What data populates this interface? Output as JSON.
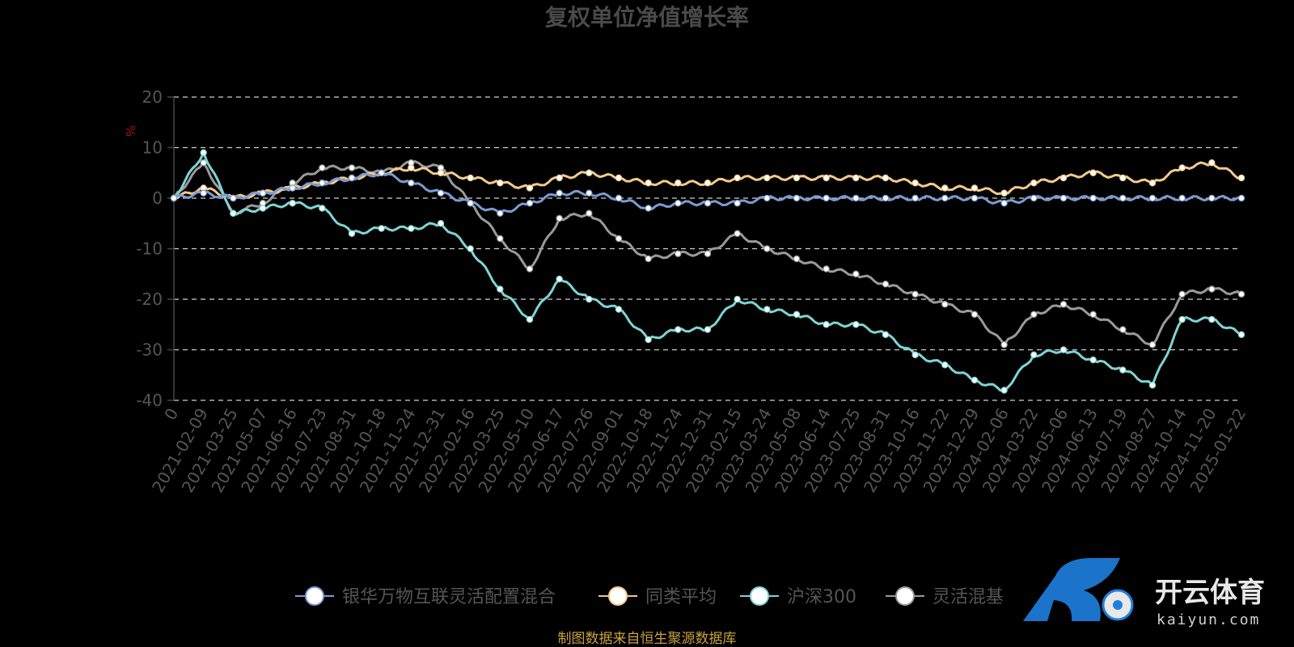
{
  "chart_data": {
    "type": "line",
    "title": "复权单位净值增长率",
    "ylabel": "%",
    "ylim": [
      -40,
      20
    ],
    "yticks": [
      20,
      10,
      0,
      -10,
      -20,
      -30,
      -40
    ],
    "grid": true,
    "legend_position": "bottom",
    "source_note": "制图数据来自恒生聚源数据库",
    "x_ticks": [
      "0",
      "2021-02-09",
      "2021-03-25",
      "2021-05-07",
      "2021-06-16",
      "2021-07-23",
      "2021-08-31",
      "2021-10-18",
      "2021-11-24",
      "2021-12-31",
      "2022-02-16",
      "2022-03-25",
      "2022-05-10",
      "2022-06-17",
      "2022-07-26",
      "2022-09-01",
      "2022-10-18",
      "2022-11-24",
      "2022-12-31",
      "2023-02-15",
      "2023-03-24",
      "2023-05-08",
      "2023-06-14",
      "2023-07-25",
      "2023-08-31",
      "2023-10-16",
      "2023-11-22",
      "2023-12-29",
      "2024-02-06",
      "2024-03-22",
      "2024-05-06",
      "2024-06-13",
      "2024-07-19",
      "2024-08-27",
      "2024-10-14",
      "2024-11-20",
      "2025-01-22"
    ],
    "series": [
      {
        "name": "银华万物互联灵活配置混合",
        "color": "#7b9bd1",
        "values": [
          0,
          1,
          0,
          1,
          2,
          3,
          4,
          5,
          3,
          1,
          -1,
          -3,
          -1,
          1,
          1,
          0,
          -2,
          -1,
          -1,
          -1,
          0,
          0,
          0,
          0,
          0,
          0,
          0,
          0,
          -1,
          0,
          0,
          0,
          0,
          0,
          0,
          0,
          0
        ]
      },
      {
        "name": "同类平均",
        "color": "#f3c98a",
        "values": [
          0,
          2,
          0,
          1,
          2,
          3,
          4,
          5,
          6,
          5,
          4,
          3,
          2,
          4,
          5,
          4,
          3,
          3,
          3,
          4,
          4,
          4,
          4,
          4,
          4,
          3,
          2,
          2,
          1,
          3,
          4,
          5,
          4,
          3,
          6,
          7,
          4
        ]
      },
      {
        "name": "沪深300",
        "color": "#7fd4d4",
        "values": [
          0,
          9,
          -3,
          -2,
          -1,
          -2,
          -7,
          -6,
          -6,
          -5,
          -10,
          -18,
          -24,
          -16,
          -20,
          -22,
          -28,
          -26,
          -26,
          -20,
          -22,
          -23,
          -25,
          -25,
          -27,
          -31,
          -33,
          -36,
          -38,
          -31,
          -30,
          -32,
          -34,
          -37,
          -24,
          -24,
          -27
        ]
      },
      {
        "name": "灵活混基",
        "color": "#9a9a9a",
        "values": [
          0,
          7,
          -3,
          -1,
          3,
          6,
          6,
          5,
          7,
          6,
          -1,
          -8,
          -14,
          -4,
          -3,
          -8,
          -12,
          -11,
          -11,
          -7,
          -10,
          -12,
          -14,
          -15,
          -17,
          -19,
          -21,
          -23,
          -29,
          -23,
          -21,
          -23,
          -26,
          -29,
          -19,
          -18,
          -19
        ]
      }
    ]
  },
  "watermark": {
    "brand_cn": "开云体育",
    "brand_en": "kaiyun.com"
  }
}
